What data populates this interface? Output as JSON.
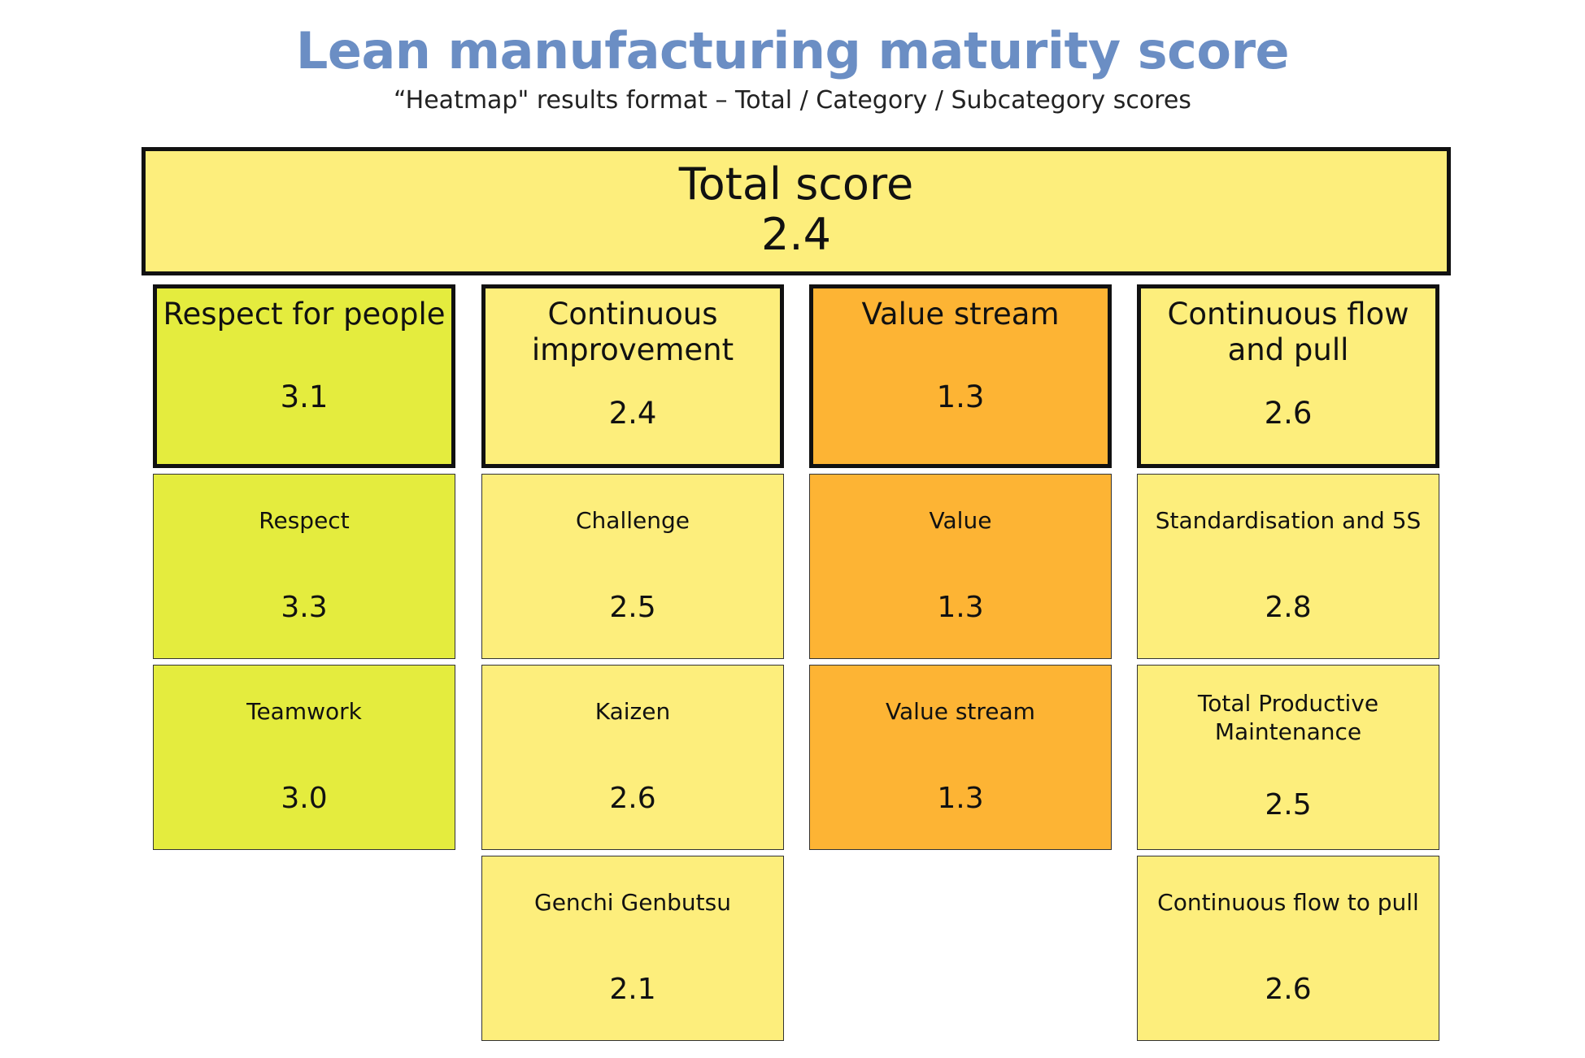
{
  "header": {
    "title": "Lean manufacturing maturity score",
    "subtitle": "“Heatmap\" results format – Total / Category / Subcategory scores"
  },
  "total": {
    "label": "Total score",
    "value": "2.4",
    "color": "#fdee7c"
  },
  "categories": [
    {
      "label": "Respect for people",
      "value": "3.1",
      "color": "#e4ec3e",
      "subcategories": [
        {
          "label": "Respect",
          "value": "3.3",
          "color": "#e4ec3e"
        },
        {
          "label": "Teamwork",
          "value": "3.0",
          "color": "#e4ec3e"
        }
      ]
    },
    {
      "label": "Continuous improvement",
      "value": "2.4",
      "color": "#fdee7c",
      "subcategories": [
        {
          "label": "Challenge",
          "value": "2.5",
          "color": "#fdee7c"
        },
        {
          "label": "Kaizen",
          "value": "2.6",
          "color": "#fdee7c"
        },
        {
          "label": "Genchi Genbutsu",
          "value": "2.1",
          "color": "#fdee7c"
        }
      ]
    },
    {
      "label": "Value stream",
      "value": "1.3",
      "color": "#fdb434",
      "subcategories": [
        {
          "label": "Value",
          "value": "1.3",
          "color": "#fdb434"
        },
        {
          "label": "Value stream",
          "value": "1.3",
          "color": "#fdb434"
        }
      ]
    },
    {
      "label": "Continuous flow and pull",
      "value": "2.6",
      "color": "#fdee7c",
      "subcategories": [
        {
          "label": "Standardisation and 5S",
          "value": "2.8",
          "color": "#fdee7c"
        },
        {
          "label": "Total Productive Maintenance",
          "value": "2.5",
          "color": "#fdee7c"
        },
        {
          "label": "Continuous flow to pull",
          "value": "2.6",
          "color": "#fdee7c"
        }
      ]
    }
  ]
}
